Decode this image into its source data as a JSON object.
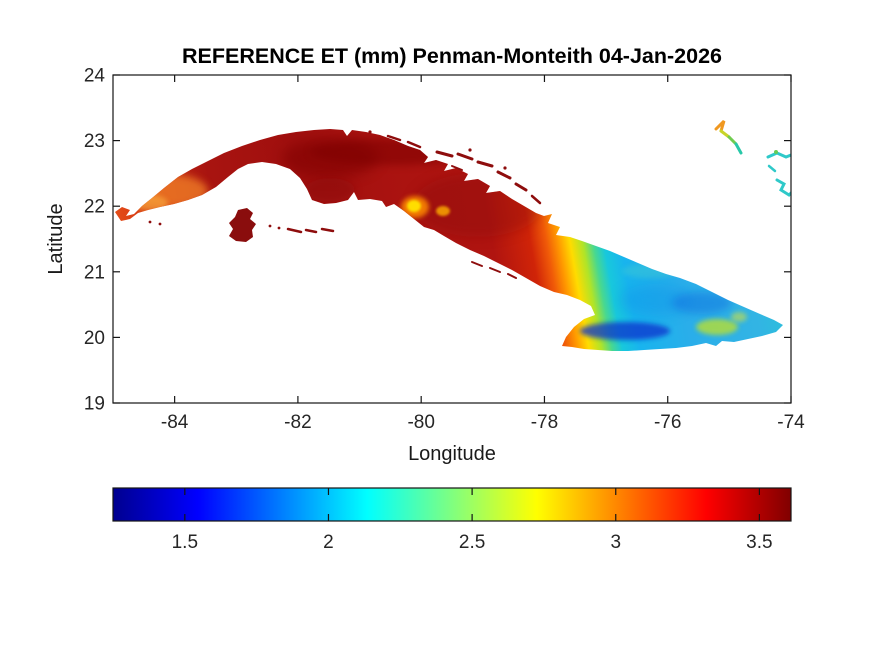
{
  "chart_data": {
    "type": "heatmap",
    "title": "REFERENCE ET (mm) Penman-Monteith 04-Jan-2026",
    "xlabel": "Longitude",
    "ylabel": "Latitude",
    "xlim": [
      -85,
      -74
    ],
    "ylim": [
      19,
      24
    ],
    "xticks": [
      -84,
      -82,
      -80,
      -78,
      -76,
      -74
    ],
    "xtick_labels": [
      "-84",
      "-82",
      "-80",
      "-78",
      "-76",
      "-74"
    ],
    "yticks": [
      19,
      20,
      21,
      22,
      23,
      24
    ],
    "ytick_labels": [
      "19",
      "20",
      "21",
      "22",
      "23",
      "24"
    ],
    "grid": false,
    "legend_position": "none",
    "colorbar": {
      "orientation": "horizontal",
      "min": 1.25,
      "max": 3.61,
      "ticks": [
        1.5,
        2,
        2.5,
        3,
        3.5
      ],
      "tick_labels": [
        "1.5",
        "2",
        "2.5",
        "3",
        "3.5"
      ],
      "colormap": "jet",
      "colormap_stops": [
        {
          "offset": 0.0,
          "color": "#00008f"
        },
        {
          "offset": 0.125,
          "color": "#0000ff"
        },
        {
          "offset": 0.375,
          "color": "#00ffff"
        },
        {
          "offset": 0.625,
          "color": "#ffff00"
        },
        {
          "offset": 0.875,
          "color": "#ff0000"
        },
        {
          "offset": 1.0,
          "color": "#800000"
        }
      ]
    },
    "island_gradient_stops": [
      {
        "offset": 0.0,
        "color": "#e85a20"
      },
      {
        "offset": 0.04,
        "color": "#e04616"
      },
      {
        "offset": 0.1,
        "color": "#c32812"
      },
      {
        "offset": 0.17,
        "color": "#a81410"
      },
      {
        "offset": 0.3,
        "color": "#a00f0e"
      },
      {
        "offset": 0.45,
        "color": "#ab1310"
      },
      {
        "offset": 0.56,
        "color": "#b01410"
      },
      {
        "offset": 0.615,
        "color": "#d02408"
      },
      {
        "offset": 0.638,
        "color": "#f05a08"
      },
      {
        "offset": 0.655,
        "color": "#ff9800"
      },
      {
        "offset": 0.672,
        "color": "#ffdc00"
      },
      {
        "offset": 0.69,
        "color": "#b0e428"
      },
      {
        "offset": 0.705,
        "color": "#48d890"
      },
      {
        "offset": 0.72,
        "color": "#18c8dc"
      },
      {
        "offset": 0.745,
        "color": "#18b4ee"
      },
      {
        "offset": 0.82,
        "color": "#2aaeea"
      },
      {
        "offset": 0.92,
        "color": "#32b4e4"
      },
      {
        "offset": 1.0,
        "color": "#28c8d4"
      }
    ],
    "regions": [
      {
        "name": "west-tip-peninsula",
        "approx_et_mm": 3.1
      },
      {
        "name": "western-central-mainland",
        "approx_et_mm": 3.5
      },
      {
        "name": "isla-de-la-juventud",
        "approx_et_mm": 3.6
      },
      {
        "name": "bright-south-central-spot",
        "approx_et_mm": 2.7
      },
      {
        "name": "transition-band",
        "approx_et_mm": 2.6
      },
      {
        "name": "eastern-region",
        "approx_et_mm": 2.0
      },
      {
        "name": "south-coast-mountains",
        "approx_et_mm": 1.4
      },
      {
        "name": "southeast-valley-patch",
        "approx_et_mm": 2.5
      }
    ]
  },
  "map_colors": {
    "pinar_orange": "#ef7d26",
    "pinar_light_orange": "#f8a83c",
    "dark_maroon": "#7e0606",
    "dark_maroon2": "#8c0808",
    "spot_halo": "#ff8c00",
    "spot_core": "#ffe400",
    "spot2": "#ffb000",
    "mid_blue": "#0f8ce8",
    "deep_blue": "#1030cc",
    "patch_blue": "#0c6ae0",
    "guant_green": "#b0dc3c",
    "guant_green2": "#d0e040",
    "tip_teal": "#40d0a8",
    "n_teal": "#50d4c4",
    "juventud_maroon": "#8a0d0d",
    "cays_dark_red": "#8e0d0d",
    "bah_orange": "#f09820",
    "bah_yellowgreen": "#c8d428",
    "bah_green": "#70cc50",
    "bah_teal": "#28c8a8",
    "bah_cyan": "#2fc9c9",
    "bah_green_dot": "#66cc55"
  }
}
